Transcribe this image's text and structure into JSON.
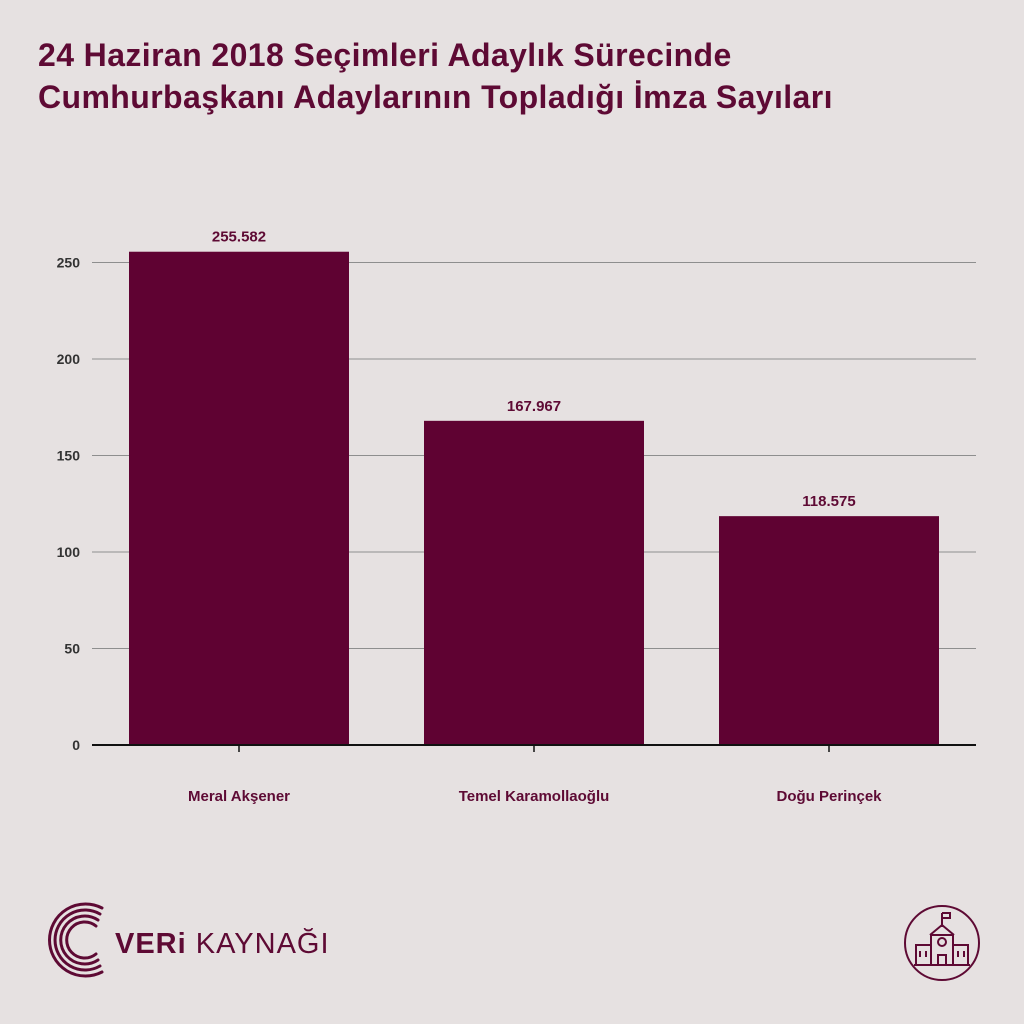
{
  "title": {
    "line1": "24 Haziran 2018 Seçimleri Adaylık Sürecinde",
    "line2": "Cumhurbaşkanı Adaylarının Topladığı İmza Sayıları"
  },
  "chart_data": {
    "type": "bar",
    "categories": [
      "Meral Akşener",
      "Temel Karamollaoğlu",
      "Doğu Perinçek"
    ],
    "values": [
      255.582,
      167.967,
      118.575
    ],
    "data_labels": [
      "255.582",
      "167.967",
      "118.575"
    ],
    "ylim": [
      0,
      260
    ],
    "yticks": [
      0,
      50,
      100,
      150,
      200,
      250
    ],
    "grid": true,
    "legend": "none",
    "colors": {
      "bar": "#5f0232",
      "grid": "#8e8e8e",
      "axis": "#111111",
      "text": "#5e0a34",
      "tick_text": "#333333"
    }
  },
  "brand": {
    "logo_bold": "VERi",
    "logo_light": "KAYNAĞI",
    "logo_icon": "radio-arcs-icon",
    "corner_icon": "school-building-icon",
    "brand_color": "#5e0a34",
    "background": "#e6e1e1"
  }
}
